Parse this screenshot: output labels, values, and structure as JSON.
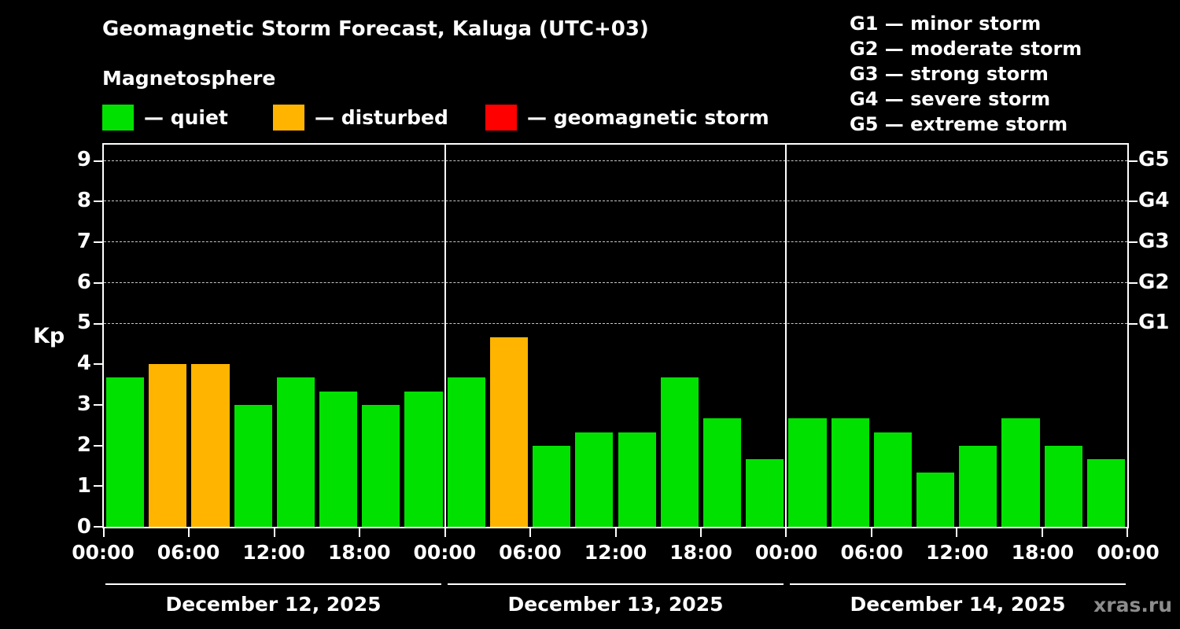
{
  "title": "Geomagnetic Storm Forecast, Kaluga (UTC+03)",
  "subtitle": "Magnetosphere",
  "legend": {
    "quiet_label": "— quiet",
    "disturbed_label": "— disturbed",
    "storm_label": "— geomagnetic storm"
  },
  "g_legend": [
    "G1 — minor storm",
    "G2 — moderate storm",
    "G3 — strong storm",
    "G4 — severe storm",
    "G5 — extreme storm"
  ],
  "colors": {
    "quiet": "#00e100",
    "disturbed": "#ffb400",
    "storm": "#ff0000",
    "background": "#000000",
    "axis": "#ffffff",
    "grid": "#c8c8c8"
  },
  "watermark": "xras.ru",
  "chart_data": {
    "type": "bar",
    "title": "Geomagnetic Storm Forecast, Kaluga (UTC+03)",
    "ylabel": "Kp",
    "ylim": [
      0,
      9.4
    ],
    "yticks": [
      0,
      1,
      2,
      3,
      4,
      5,
      6,
      7,
      8,
      9
    ],
    "gridlines": [
      5,
      6,
      7,
      8,
      9
    ],
    "right_axis": [
      {
        "kp": 5,
        "label": "G1"
      },
      {
        "kp": 6,
        "label": "G2"
      },
      {
        "kp": 7,
        "label": "G3"
      },
      {
        "kp": 8,
        "label": "G4"
      },
      {
        "kp": 9,
        "label": "G5"
      }
    ],
    "x_tick_labels": [
      "00:00",
      "06:00",
      "12:00",
      "18:00",
      "00:00",
      "06:00",
      "12:00",
      "18:00",
      "00:00",
      "06:00",
      "12:00",
      "18:00",
      "00:00"
    ],
    "bar_interval_hours": 3,
    "days": [
      {
        "date": "December 12, 2025",
        "values": [
          3.67,
          4.0,
          4.0,
          3.0,
          3.67,
          3.33,
          3.0,
          3.33
        ],
        "status": [
          "quiet",
          "disturbed",
          "disturbed",
          "quiet",
          "quiet",
          "quiet",
          "quiet",
          "quiet"
        ]
      },
      {
        "date": "December 13, 2025",
        "values": [
          3.67,
          4.67,
          2.0,
          2.33,
          2.33,
          3.67,
          2.67,
          1.67
        ],
        "status": [
          "quiet",
          "disturbed",
          "quiet",
          "quiet",
          "quiet",
          "quiet",
          "quiet",
          "quiet"
        ]
      },
      {
        "date": "December 14, 2025",
        "values": [
          2.67,
          2.67,
          2.33,
          1.33,
          2.0,
          2.67,
          2.0,
          1.67
        ],
        "status": [
          "quiet",
          "quiet",
          "quiet",
          "quiet",
          "quiet",
          "quiet",
          "quiet",
          "quiet"
        ]
      }
    ]
  }
}
